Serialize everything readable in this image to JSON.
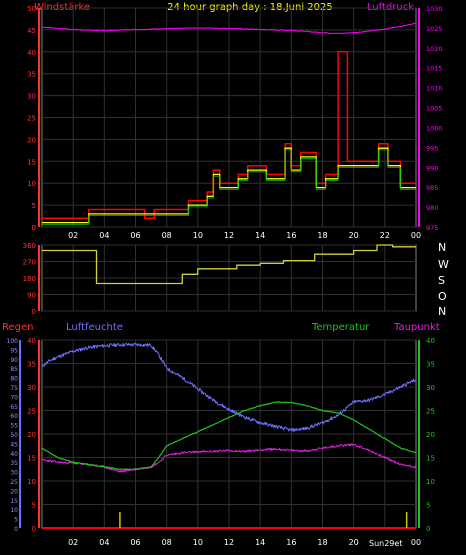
{
  "header": {
    "left_label": "Windstärke",
    "title": "24 hour graph day : 18.Juni 2025",
    "right_label": "Luftdruck"
  },
  "labels": {
    "regen": "Regen",
    "luftfeuchte": "Luftfeuchte",
    "temperatur": "Temperatur",
    "taupunkt": "Taupunkt",
    "direction_letters": [
      "N",
      "W",
      "S",
      "O",
      "N"
    ],
    "sun_marker": "Sun29et"
  },
  "colors": {
    "wind_axis": "#ff3030",
    "pressure": "#ff00ff",
    "wind_gust": "#ff0000",
    "wind_avg": "#00c000",
    "wind_avg2": "#ffff00",
    "direction": "#d0d040",
    "humidity": "#7070ff",
    "temperature": "#20c020",
    "dewpoint": "#e020e0",
    "title": "#ffff00",
    "grid": "#303030",
    "rain": "#ff0000",
    "sun": "#c8c800"
  },
  "chart_data": [
    {
      "name": "wind_pressure",
      "type": "line",
      "title": "24 hour graph day : 18.Juni 2025",
      "x_ticks": [
        "02",
        "04",
        "06",
        "08",
        "10",
        "12",
        "14",
        "16",
        "18",
        "20",
        "22",
        "00"
      ],
      "left_axis": {
        "label": "Windstärke",
        "range": [
          0,
          50
        ],
        "ticks": [
          0,
          5,
          10,
          15,
          20,
          25,
          30,
          35,
          40,
          45,
          50
        ]
      },
      "right_axis": {
        "label": "Luftdruck",
        "range": [
          975,
          1030
        ],
        "ticks": [
          975,
          980,
          985,
          990,
          995,
          1000,
          1005,
          1010,
          1015,
          1020,
          1025,
          1030
        ]
      },
      "series": [
        {
          "name": "Luftdruck",
          "axis": "right",
          "points": [
            [
              0,
              1025.2
            ],
            [
              2,
              1024.6
            ],
            [
              4,
              1024.3
            ],
            [
              6,
              1024.6
            ],
            [
              8,
              1024.8
            ],
            [
              10,
              1025.0
            ],
            [
              12,
              1024.9
            ],
            [
              14,
              1024.6
            ],
            [
              16,
              1024.4
            ],
            [
              18,
              1023.8
            ],
            [
              19,
              1023.6
            ],
            [
              20,
              1023.8
            ],
            [
              21,
              1024.2
            ],
            [
              22,
              1024.7
            ],
            [
              23,
              1025.4
            ],
            [
              24,
              1026.2
            ]
          ]
        },
        {
          "name": "Windstärke Böen",
          "axis": "left",
          "points": [
            [
              0,
              2
            ],
            [
              2,
              2
            ],
            [
              3,
              2
            ],
            [
              3,
              4
            ],
            [
              6.6,
              4
            ],
            [
              6.6,
              2
            ],
            [
              7.2,
              2
            ],
            [
              7.2,
              4
            ],
            [
              9.4,
              4
            ],
            [
              9.4,
              6
            ],
            [
              10.6,
              6
            ],
            [
              10.6,
              8
            ],
            [
              11,
              8
            ],
            [
              11,
              13
            ],
            [
              11.4,
              13
            ],
            [
              11.4,
              10
            ],
            [
              12.6,
              10
            ],
            [
              12.6,
              12
            ],
            [
              13.2,
              12
            ],
            [
              13.2,
              14
            ],
            [
              14.4,
              14
            ],
            [
              14.4,
              12
            ],
            [
              15.6,
              12
            ],
            [
              15.6,
              19
            ],
            [
              16,
              19
            ],
            [
              16,
              14
            ],
            [
              16.6,
              14
            ],
            [
              16.6,
              17
            ],
            [
              17.6,
              17
            ],
            [
              17.6,
              10
            ],
            [
              18.2,
              10
            ],
            [
              18.2,
              12
            ],
            [
              19,
              12
            ],
            [
              19,
              40
            ],
            [
              19.6,
              40
            ],
            [
              19.6,
              15
            ],
            [
              21.6,
              15
            ],
            [
              21.6,
              19
            ],
            [
              22.2,
              19
            ],
            [
              22.2,
              15
            ],
            [
              23,
              15
            ],
            [
              23,
              10
            ],
            [
              24,
              10
            ]
          ]
        },
        {
          "name": "Windstärke Mittel",
          "axis": "left",
          "points": [
            [
              0,
              1
            ],
            [
              3,
              1
            ],
            [
              3,
              3
            ],
            [
              9.4,
              3
            ],
            [
              9.4,
              5
            ],
            [
              10.6,
              5
            ],
            [
              10.6,
              7
            ],
            [
              11,
              7
            ],
            [
              11,
              12
            ],
            [
              11.4,
              12
            ],
            [
              11.4,
              9
            ],
            [
              12.6,
              9
            ],
            [
              12.6,
              11
            ],
            [
              13.2,
              11
            ],
            [
              13.2,
              13
            ],
            [
              14.4,
              13
            ],
            [
              14.4,
              11
            ],
            [
              15.6,
              11
            ],
            [
              15.6,
              18
            ],
            [
              16,
              18
            ],
            [
              16,
              13
            ],
            [
              16.6,
              13
            ],
            [
              16.6,
              16
            ],
            [
              17.6,
              16
            ],
            [
              17.6,
              9
            ],
            [
              18.2,
              9
            ],
            [
              18.2,
              11
            ],
            [
              19,
              11
            ],
            [
              19,
              14
            ],
            [
              21.6,
              14
            ],
            [
              21.6,
              18
            ],
            [
              22.2,
              18
            ],
            [
              22.2,
              14
            ],
            [
              23,
              14
            ],
            [
              23,
              9
            ],
            [
              24,
              9
            ]
          ]
        }
      ]
    },
    {
      "name": "wind_direction",
      "type": "line",
      "y_axis": {
        "range": [
          0,
          360
        ],
        "ticks": [
          0,
          90,
          180,
          270,
          360
        ]
      },
      "series": [
        {
          "name": "Windrichtung",
          "points": [
            [
              0,
              330
            ],
            [
              3.5,
              330
            ],
            [
              3.5,
              150
            ],
            [
              9,
              150
            ],
            [
              9,
              200
            ],
            [
              10,
              200
            ],
            [
              10,
              230
            ],
            [
              12.5,
              230
            ],
            [
              12.5,
              250
            ],
            [
              14,
              250
            ],
            [
              14,
              260
            ],
            [
              15.5,
              260
            ],
            [
              15.5,
              275
            ],
            [
              17.5,
              275
            ],
            [
              17.5,
              310
            ],
            [
              20,
              310
            ],
            [
              20,
              330
            ],
            [
              21.5,
              330
            ],
            [
              21.5,
              360
            ],
            [
              22.5,
              360
            ],
            [
              22.5,
              350
            ],
            [
              24,
              350
            ]
          ]
        }
      ]
    },
    {
      "name": "humidity_temperature",
      "type": "line",
      "x_ticks": [
        "02",
        "04",
        "06",
        "08",
        "10",
        "12",
        "14",
        "16",
        "18",
        "20",
        "22",
        "00"
      ],
      "axes": {
        "regen": {
          "label": "Regen",
          "range": [
            0,
            100
          ],
          "ticks": [
            0,
            5,
            10,
            15,
            20,
            25,
            30,
            35,
            40,
            45,
            50,
            55,
            60,
            65,
            70,
            75,
            80,
            85,
            90,
            95,
            100
          ]
        },
        "luftfeuchte": {
          "label": "Luftfeuchte",
          "range": [
            0,
            40
          ],
          "ticks": [
            0,
            5,
            10,
            15,
            20,
            25,
            30,
            35,
            40
          ]
        },
        "temperatur": {
          "label": "Temperatur",
          "range": [
            0,
            40
          ],
          "ticks": [
            0,
            5,
            10,
            15,
            20,
            25,
            30,
            35,
            40
          ]
        }
      },
      "series": [
        {
          "name": "Luftfeuchte",
          "axis": "regen",
          "points": [
            [
              0,
              86
            ],
            [
              0.5,
              89
            ],
            [
              1,
              91
            ],
            [
              2,
              94
            ],
            [
              3,
              96
            ],
            [
              4,
              97
            ],
            [
              5,
              97.5
            ],
            [
              6,
              97.5
            ],
            [
              7,
              97.3
            ],
            [
              7.5,
              92
            ],
            [
              8,
              85
            ],
            [
              9,
              80
            ],
            [
              10,
              74
            ],
            [
              11,
              68
            ],
            [
              12,
              63
            ],
            [
              13,
              59
            ],
            [
              14,
              56
            ],
            [
              15,
              54
            ],
            [
              16,
              52
            ],
            [
              17,
              53
            ],
            [
              18,
              56
            ],
            [
              19,
              60
            ],
            [
              20,
              67
            ],
            [
              21,
              68
            ],
            [
              22,
              71
            ],
            [
              23,
              75
            ],
            [
              24,
              79
            ]
          ]
        },
        {
          "name": "Temperatur",
          "axis": "temperatur",
          "points": [
            [
              0,
              17
            ],
            [
              1,
              15
            ],
            [
              2,
              14
            ],
            [
              3,
              13.5
            ],
            [
              4,
              13
            ],
            [
              5,
              12.5
            ],
            [
              6,
              12.5
            ],
            [
              7,
              13
            ],
            [
              7.5,
              15
            ],
            [
              8,
              17.5
            ],
            [
              9,
              19
            ],
            [
              10,
              20.5
            ],
            [
              11,
              22
            ],
            [
              12,
              23.5
            ],
            [
              13,
              25
            ],
            [
              14,
              26
            ],
            [
              15,
              26.8
            ],
            [
              16,
              26.7
            ],
            [
              17,
              26
            ],
            [
              18,
              25
            ],
            [
              19,
              24.5
            ],
            [
              20,
              23
            ],
            [
              21,
              21
            ],
            [
              22,
              19
            ],
            [
              23,
              17
            ],
            [
              24,
              16
            ]
          ]
        },
        {
          "name": "Taupunkt",
          "axis": "temperatur",
          "points": [
            [
              0,
              14.5
            ],
            [
              1,
              14
            ],
            [
              2,
              13.8
            ],
            [
              3,
              13.5
            ],
            [
              4,
              13
            ],
            [
              5,
              12
            ],
            [
              6,
              12.5
            ],
            [
              7,
              13
            ],
            [
              7.5,
              14
            ],
            [
              8,
              15.5
            ],
            [
              9,
              16
            ],
            [
              10,
              16.2
            ],
            [
              11,
              16.3
            ],
            [
              12,
              16.5
            ],
            [
              13,
              16.3
            ],
            [
              14,
              16.6
            ],
            [
              15,
              16.8
            ],
            [
              16,
              16.5
            ],
            [
              17,
              16.4
            ],
            [
              18,
              17
            ],
            [
              19,
              17.5
            ],
            [
              20,
              17.8
            ],
            [
              21,
              16.5
            ],
            [
              22,
              15
            ],
            [
              23,
              13.5
            ],
            [
              24,
              13
            ]
          ]
        },
        {
          "name": "Regen",
          "axis": "regen",
          "points": [
            [
              0,
              0
            ],
            [
              24,
              0
            ]
          ]
        }
      ],
      "sun_bars_hours": [
        5,
        23.4
      ]
    }
  ]
}
